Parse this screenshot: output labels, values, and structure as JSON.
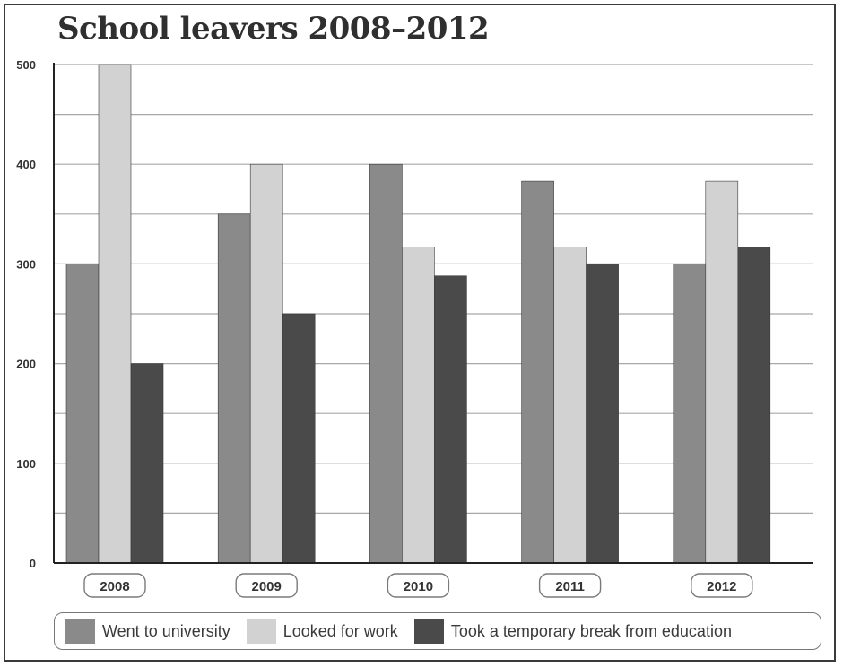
{
  "chart_data": {
    "type": "bar",
    "title": "School leavers 2008–2012",
    "categories": [
      "2008",
      "2009",
      "2010",
      "2011",
      "2012"
    ],
    "series": [
      {
        "name": "Went to university",
        "values": [
          300,
          350,
          400,
          383,
          300
        ],
        "color": "#8a8a8a"
      },
      {
        "name": "Looked for work",
        "values": [
          500,
          400,
          317,
          317,
          383
        ],
        "color": "#d2d2d2"
      },
      {
        "name": "Took a temporary break from education",
        "values": [
          200,
          250,
          288,
          300,
          317
        ],
        "color": "#4a4a4a"
      }
    ],
    "yticks": [
      "0",
      "100",
      "200",
      "300",
      "400",
      "500"
    ],
    "ylim": [
      0,
      500
    ],
    "grid": true,
    "legend_position": "bottom"
  }
}
